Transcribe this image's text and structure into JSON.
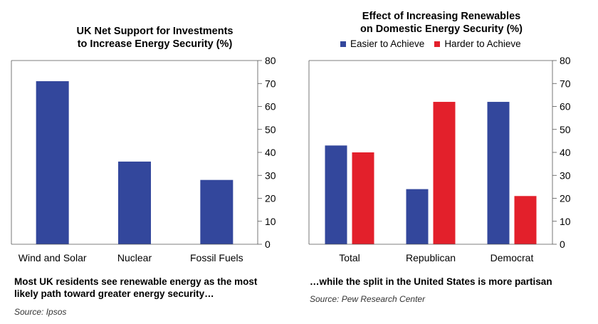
{
  "chart_data": [
    {
      "type": "bar",
      "title": "UK Net Support for Investments to Increase Energy Security (%)",
      "title_lines": [
        "UK Net Support for Investments",
        "to Increase Energy Security (%)"
      ],
      "categories": [
        "Wind and Solar",
        "Nuclear",
        "Fossil Fuels"
      ],
      "values": [
        71,
        36,
        28
      ],
      "ylim": [
        0,
        80
      ],
      "yticks": [
        0,
        10,
        20,
        30,
        40,
        50,
        60,
        70,
        80
      ],
      "xlabel": "",
      "ylabel": "",
      "color": "#33479c",
      "caption": "Most UK residents see renewable energy as the most likely path toward greater energy security…",
      "caption_lines": [
        "Most UK residents see renewable energy as the most",
        "likely path toward greater energy security…"
      ],
      "source": "Source: Ipsos"
    },
    {
      "type": "bar",
      "title": "Effect of Increasing Renewables on Domestic Energy Security (%)",
      "title_lines": [
        "Effect of Increasing Renewables",
        "on Domestic Energy Security (%)"
      ],
      "categories": [
        "Total",
        "Republican",
        "Democrat"
      ],
      "series": [
        {
          "name": "Easier to Achieve",
          "values": [
            43,
            24,
            62
          ],
          "color": "#33479c"
        },
        {
          "name": "Harder to Achieve",
          "values": [
            40,
            62,
            21
          ],
          "color": "#e3202b"
        }
      ],
      "ylim": [
        0,
        80
      ],
      "yticks": [
        0,
        10,
        20,
        30,
        40,
        50,
        60,
        70,
        80
      ],
      "xlabel": "",
      "ylabel": "",
      "legend_position": "top",
      "caption": "…while the split in the United States is more partisan",
      "caption_lines": [
        "…while the split in the United States is more partisan"
      ],
      "source": "Source: Pew Research Center"
    }
  ]
}
